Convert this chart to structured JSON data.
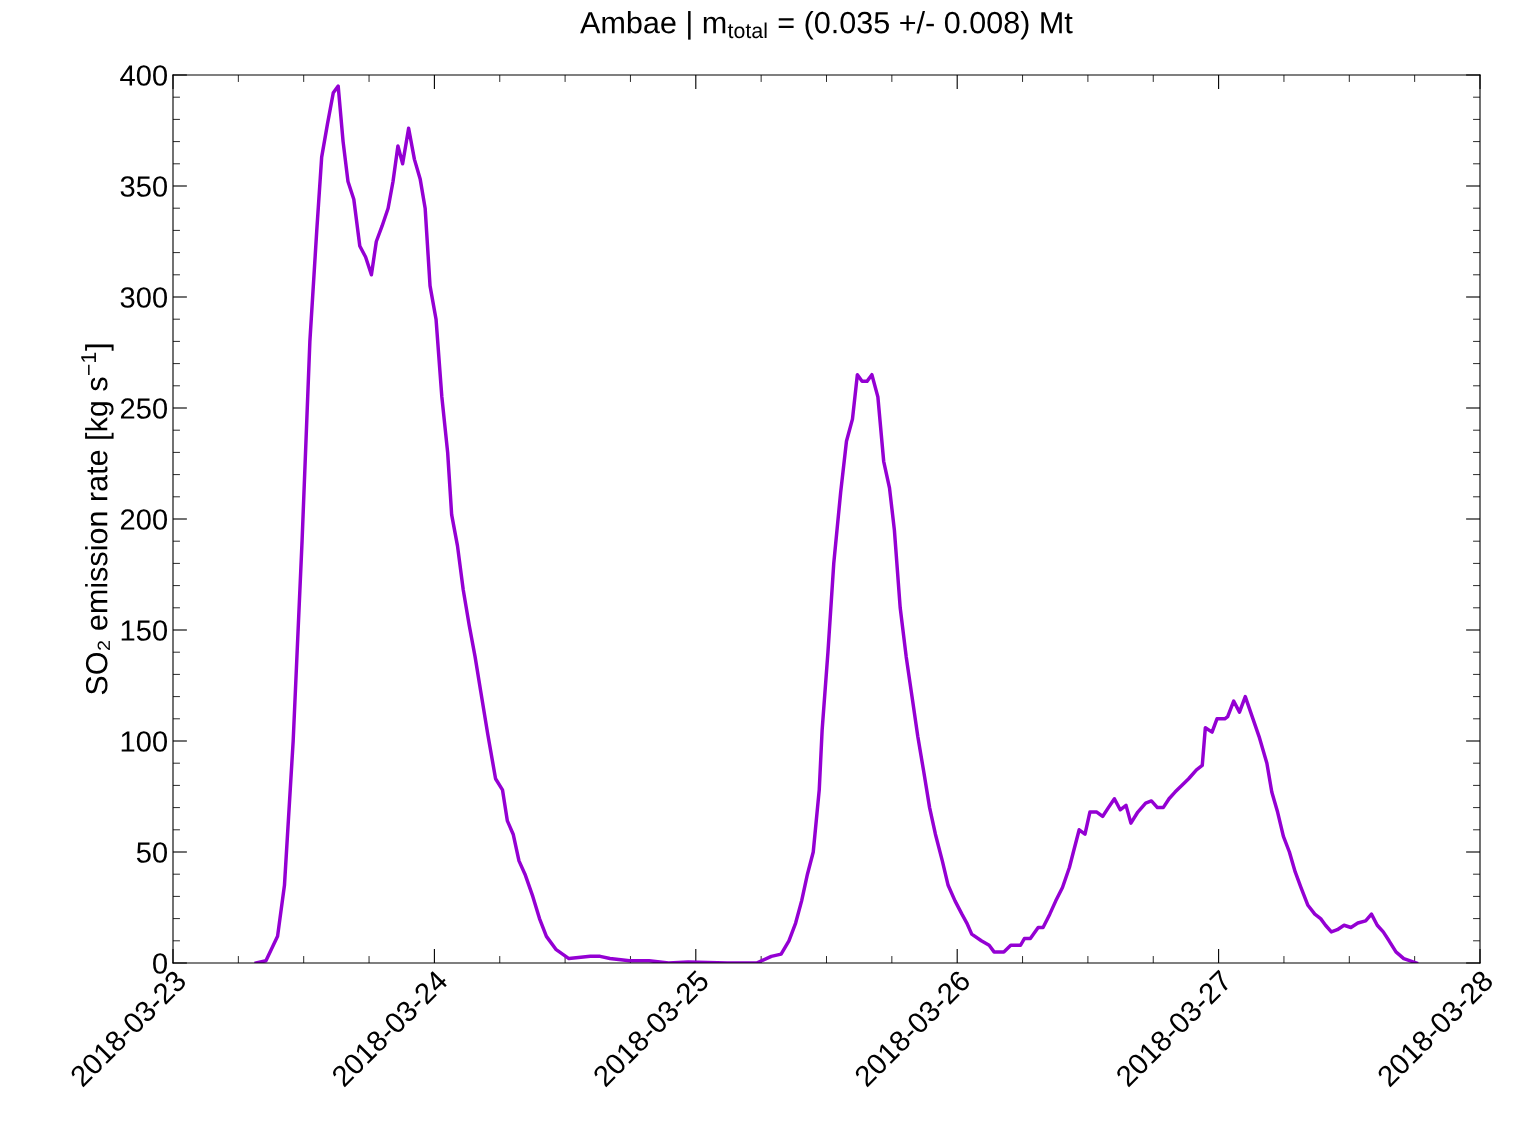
{
  "chart_data": {
    "type": "line",
    "title": "Ambae | m$_{total}$ = (0.035 +/- 0.008) Mt",
    "ylabel": "SO₂ emission rate [kg s$^{−1}$]",
    "xlim": [
      "2018-03-23",
      "2018-03-28"
    ],
    "xticks": [
      "2018-03-23",
      "2018-03-24",
      "2018-03-25",
      "2018-03-26",
      "2018-03-27",
      "2018-03-28"
    ],
    "ylim": [
      0,
      400
    ],
    "yticks": [
      0,
      50,
      100,
      150,
      200,
      250,
      300,
      350,
      400
    ],
    "grid": false,
    "marker": "none",
    "line_style": "solid",
    "series": [
      {
        "color": "#9400d3",
        "x": [
          "2018-03-23T07:38",
          "2018-03-23T08:32",
          "2018-03-23T09:36",
          "2018-03-23T10:14",
          "2018-03-23T11:02",
          "2018-03-23T11:51",
          "2018-03-23T12:34",
          "2018-03-23T13:12",
          "2018-03-23T13:39",
          "2018-03-23T14:11",
          "2018-03-23T14:43",
          "2018-03-23T15:10",
          "2018-03-23T15:37",
          "2018-03-23T16:04",
          "2018-03-23T16:36",
          "2018-03-23T17:09",
          "2018-03-23T17:41",
          "2018-03-23T18:13",
          "2018-03-23T18:40",
          "2018-03-23T19:12",
          "2018-03-23T19:45",
          "2018-03-23T20:12",
          "2018-03-23T20:39",
          "2018-03-23T21:05",
          "2018-03-23T21:38",
          "2018-03-23T22:10",
          "2018-03-23T22:42",
          "2018-03-23T23:09",
          "2018-03-23T23:36",
          "2018-03-24T00:09",
          "2018-03-24T00:41",
          "2018-03-24T01:13",
          "2018-03-24T01:35",
          "2018-03-24T02:07",
          "2018-03-24T02:39",
          "2018-03-24T03:12",
          "2018-03-24T03:44",
          "2018-03-24T04:16",
          "2018-03-24T04:54",
          "2018-03-24T05:37",
          "2018-03-24T06:15",
          "2018-03-24T06:42",
          "2018-03-24T07:14",
          "2018-03-24T07:46",
          "2018-03-24T08:19",
          "2018-03-24T09:02",
          "2018-03-24T09:39",
          "2018-03-24T10:17",
          "2018-03-24T11:11",
          "2018-03-24T12:21",
          "2018-03-24T14:19",
          "2018-03-24T15:13",
          "2018-03-24T16:07",
          "2018-03-24T17:55",
          "2018-03-24T19:43",
          "2018-03-24T21:30",
          "2018-03-24T23:18",
          "2018-03-25T02:53",
          "2018-03-25T05:35",
          "2018-03-25T06:56",
          "2018-03-25T07:50",
          "2018-03-25T08:33",
          "2018-03-25T09:10",
          "2018-03-25T09:43",
          "2018-03-25T10:15",
          "2018-03-25T10:47",
          "2018-03-25T11:20",
          "2018-03-25T11:36",
          "2018-03-25T12:08",
          "2018-03-25T12:40",
          "2018-03-25T13:18",
          "2018-03-25T13:50",
          "2018-03-25T14:23",
          "2018-03-25T14:50",
          "2018-03-25T15:16",
          "2018-03-25T15:43",
          "2018-03-25T16:10",
          "2018-03-25T16:43",
          "2018-03-25T17:15",
          "2018-03-25T17:47",
          "2018-03-25T18:14",
          "2018-03-25T18:46",
          "2018-03-25T19:19",
          "2018-03-25T19:51",
          "2018-03-25T20:23",
          "2018-03-25T20:56",
          "2018-03-25T21:28",
          "2018-03-25T22:00",
          "2018-03-25T22:38",
          "2018-03-25T23:10",
          "2018-03-25T23:48",
          "2018-03-26T00:26",
          "2018-03-26T00:53",
          "2018-03-26T01:20",
          "2018-03-26T02:13",
          "2018-03-26T02:56",
          "2018-03-26T03:23",
          "2018-03-26T04:17",
          "2018-03-26T04:55",
          "2018-03-26T05:49",
          "2018-03-26T06:10",
          "2018-03-26T06:43",
          "2018-03-26T07:26",
          "2018-03-26T07:53",
          "2018-03-26T08:30",
          "2018-03-26T09:03",
          "2018-03-26T09:40",
          "2018-03-26T10:18",
          "2018-03-26T10:40",
          "2018-03-26T11:12",
          "2018-03-26T11:44",
          "2018-03-26T12:11",
          "2018-03-26T12:49",
          "2018-03-26T13:21",
          "2018-03-26T13:53",
          "2018-03-26T14:26",
          "2018-03-26T14:58",
          "2018-03-26T15:30",
          "2018-03-26T15:57",
          "2018-03-26T16:35",
          "2018-03-26T17:18",
          "2018-03-26T17:50",
          "2018-03-26T18:23",
          "2018-03-26T18:55",
          "2018-03-26T19:27",
          "2018-03-26T20:00",
          "2018-03-26T20:37",
          "2018-03-26T21:15",
          "2018-03-26T21:58",
          "2018-03-26T22:30",
          "2018-03-26T22:47",
          "2018-03-26T23:24",
          "2018-03-26T23:51",
          "2018-03-27T00:34",
          "2018-03-27T00:50",
          "2018-03-27T01:23",
          "2018-03-27T01:55",
          "2018-03-27T02:27",
          "2018-03-27T03:05",
          "2018-03-27T03:43",
          "2018-03-27T04:26",
          "2018-03-27T04:53",
          "2018-03-27T05:25",
          "2018-03-27T05:57",
          "2018-03-27T06:30",
          "2018-03-27T07:02",
          "2018-03-27T07:34",
          "2018-03-27T08:12",
          "2018-03-27T08:50",
          "2018-03-27T09:22",
          "2018-03-27T09:49",
          "2018-03-27T10:21",
          "2018-03-27T10:54",
          "2018-03-27T11:31",
          "2018-03-27T12:09",
          "2018-03-27T12:47",
          "2018-03-27T13:30",
          "2018-03-27T14:02",
          "2018-03-27T14:34",
          "2018-03-27T15:07",
          "2018-03-27T15:39",
          "2018-03-27T16:17",
          "2018-03-27T17:00",
          "2018-03-27T18:10"
        ],
        "values": [
          0,
          1,
          12,
          35,
          100,
          190,
          280,
          330,
          363,
          378,
          392,
          395,
          370,
          352,
          344,
          323,
          318,
          310,
          325,
          332,
          340,
          352,
          368,
          360,
          376,
          362,
          353,
          340,
          305,
          290,
          255,
          230,
          202,
          188,
          168,
          152,
          138,
          122,
          103,
          83,
          78,
          64,
          58,
          46,
          40,
          30,
          20,
          12,
          6,
          2,
          3,
          3,
          2,
          1,
          1,
          0,
          0.5,
          0,
          0,
          3,
          4,
          10,
          18,
          28,
          40,
          50,
          78,
          105,
          140,
          180,
          212,
          235,
          245,
          265,
          262,
          262,
          265,
          255,
          226,
          214,
          195,
          160,
          138,
          120,
          102,
          86,
          70,
          58,
          46,
          35,
          28,
          22,
          18,
          13,
          10,
          8,
          5,
          5,
          8,
          8,
          11,
          11,
          16,
          16,
          22,
          28,
          34,
          43,
          50,
          60,
          58,
          68,
          68,
          66,
          70,
          74,
          69,
          71,
          63,
          68,
          72,
          73,
          70,
          70,
          74,
          77,
          80,
          83,
          87,
          89,
          106,
          104,
          110,
          110,
          111,
          118,
          113,
          120,
          111,
          102,
          90,
          77,
          68,
          57,
          50,
          41,
          34,
          26,
          22,
          20,
          17,
          14,
          15,
          17,
          16,
          18,
          19,
          22,
          17,
          14,
          10,
          5,
          2,
          0
        ]
      }
    ]
  }
}
